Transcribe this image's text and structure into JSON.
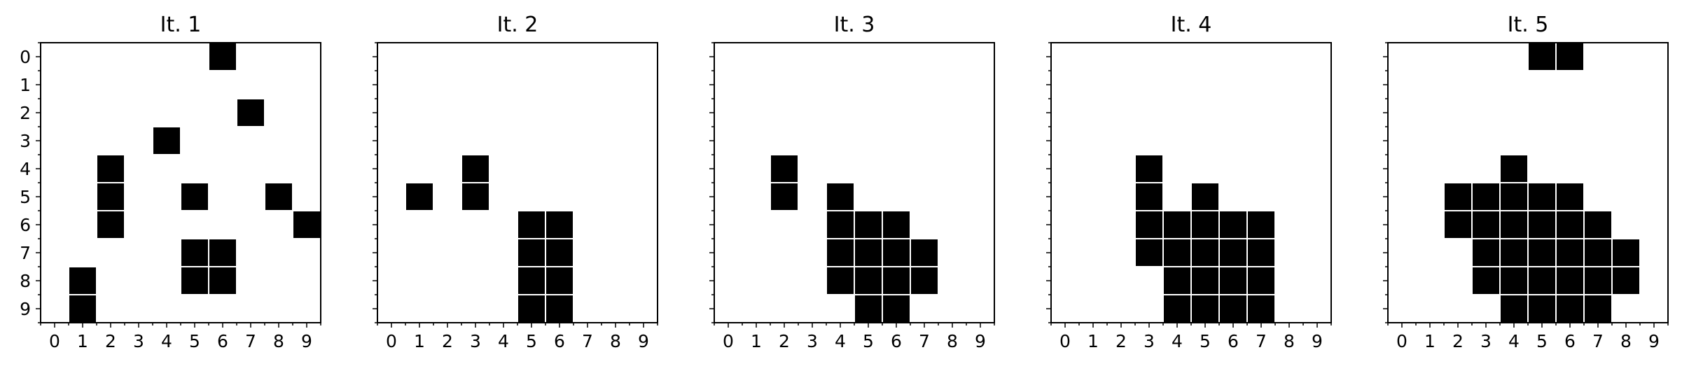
{
  "chart_data": [
    {
      "type": "heatmap",
      "title": "It. 1",
      "x_ticks": [
        "0",
        "1",
        "2",
        "3",
        "4",
        "5",
        "6",
        "7",
        "8",
        "9"
      ],
      "y_ticks": [
        "0",
        "1",
        "2",
        "3",
        "4",
        "5",
        "6",
        "7",
        "8",
        "9"
      ],
      "xlim": [
        -0.5,
        9.5
      ],
      "ylim": [
        9.5,
        -0.5
      ],
      "cells": [
        [
          0,
          6
        ],
        [
          2,
          7
        ],
        [
          3,
          4
        ],
        [
          4,
          2
        ],
        [
          5,
          2
        ],
        [
          5,
          5
        ],
        [
          5,
          8
        ],
        [
          6,
          2
        ],
        [
          6,
          9
        ],
        [
          7,
          5
        ],
        [
          7,
          6
        ],
        [
          8,
          1
        ],
        [
          8,
          5
        ],
        [
          8,
          6
        ],
        [
          9,
          1
        ]
      ]
    },
    {
      "type": "heatmap",
      "title": "It. 2",
      "x_ticks": [
        "0",
        "1",
        "2",
        "3",
        "4",
        "5",
        "6",
        "7",
        "8",
        "9"
      ],
      "y_ticks": [],
      "xlim": [
        -0.5,
        9.5
      ],
      "ylim": [
        9.5,
        -0.5
      ],
      "cells": [
        [
          4,
          3
        ],
        [
          5,
          1
        ],
        [
          5,
          3
        ],
        [
          6,
          5
        ],
        [
          6,
          6
        ],
        [
          7,
          5
        ],
        [
          7,
          6
        ],
        [
          8,
          5
        ],
        [
          8,
          6
        ],
        [
          9,
          5
        ],
        [
          9,
          6
        ]
      ]
    },
    {
      "type": "heatmap",
      "title": "It. 3",
      "x_ticks": [
        "0",
        "1",
        "2",
        "3",
        "4",
        "5",
        "6",
        "7",
        "8",
        "9"
      ],
      "y_ticks": [],
      "xlim": [
        -0.5,
        9.5
      ],
      "ylim": [
        9.5,
        -0.5
      ],
      "cells": [
        [
          4,
          2
        ],
        [
          5,
          2
        ],
        [
          5,
          4
        ],
        [
          6,
          4
        ],
        [
          6,
          5
        ],
        [
          6,
          6
        ],
        [
          7,
          4
        ],
        [
          7,
          5
        ],
        [
          7,
          6
        ],
        [
          7,
          7
        ],
        [
          8,
          4
        ],
        [
          8,
          5
        ],
        [
          8,
          6
        ],
        [
          8,
          7
        ],
        [
          9,
          5
        ],
        [
          9,
          6
        ]
      ]
    },
    {
      "type": "heatmap",
      "title": "It. 4",
      "x_ticks": [
        "0",
        "1",
        "2",
        "3",
        "4",
        "5",
        "6",
        "7",
        "8",
        "9"
      ],
      "y_ticks": [],
      "xlim": [
        -0.5,
        9.5
      ],
      "ylim": [
        9.5,
        -0.5
      ],
      "cells": [
        [
          4,
          3
        ],
        [
          5,
          3
        ],
        [
          5,
          5
        ],
        [
          6,
          3
        ],
        [
          6,
          4
        ],
        [
          6,
          5
        ],
        [
          6,
          6
        ],
        [
          6,
          7
        ],
        [
          7,
          3
        ],
        [
          7,
          4
        ],
        [
          7,
          5
        ],
        [
          7,
          6
        ],
        [
          7,
          7
        ],
        [
          8,
          4
        ],
        [
          8,
          5
        ],
        [
          8,
          6
        ],
        [
          8,
          7
        ],
        [
          9,
          4
        ],
        [
          9,
          5
        ],
        [
          9,
          6
        ],
        [
          9,
          7
        ]
      ]
    },
    {
      "type": "heatmap",
      "title": "It. 5",
      "x_ticks": [
        "0",
        "1",
        "2",
        "3",
        "4",
        "5",
        "6",
        "7",
        "8",
        "9"
      ],
      "y_ticks": [],
      "xlim": [
        -0.5,
        9.5
      ],
      "ylim": [
        9.5,
        -0.5
      ],
      "cells": [
        [
          0,
          5
        ],
        [
          0,
          6
        ],
        [
          4,
          4
        ],
        [
          5,
          2
        ],
        [
          5,
          3
        ],
        [
          5,
          4
        ],
        [
          5,
          5
        ],
        [
          5,
          6
        ],
        [
          6,
          2
        ],
        [
          6,
          3
        ],
        [
          6,
          4
        ],
        [
          6,
          5
        ],
        [
          6,
          6
        ],
        [
          6,
          7
        ],
        [
          7,
          3
        ],
        [
          7,
          4
        ],
        [
          7,
          5
        ],
        [
          7,
          6
        ],
        [
          7,
          7
        ],
        [
          7,
          8
        ],
        [
          8,
          3
        ],
        [
          8,
          4
        ],
        [
          8,
          5
        ],
        [
          8,
          6
        ],
        [
          8,
          7
        ],
        [
          8,
          8
        ],
        [
          9,
          4
        ],
        [
          9,
          5
        ],
        [
          9,
          6
        ],
        [
          9,
          7
        ]
      ]
    }
  ],
  "colors": {
    "filled_cell": "#000000",
    "cell_border": "#ffffff",
    "background": "#ffffff",
    "frame": "#000000"
  }
}
